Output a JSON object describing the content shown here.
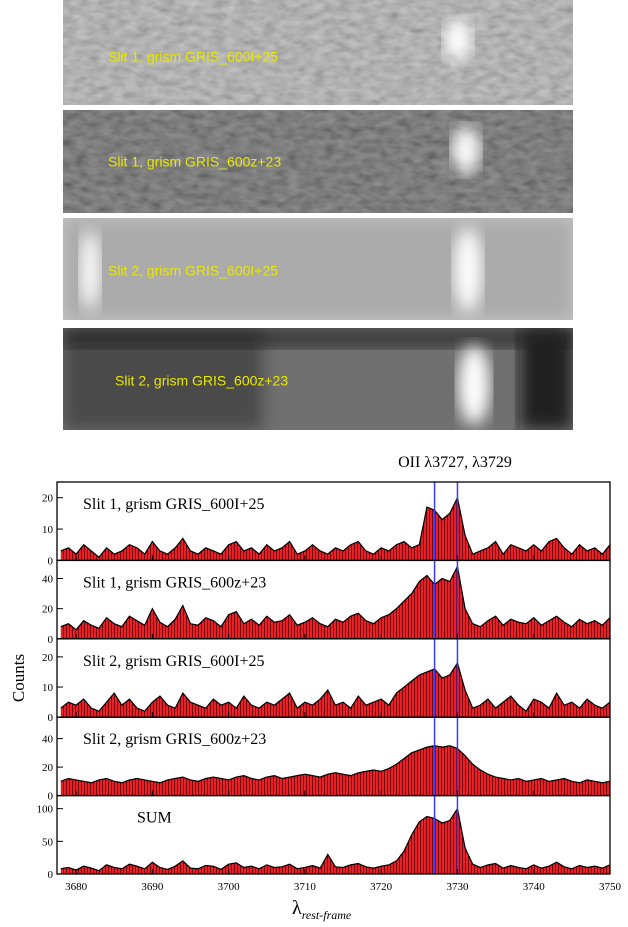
{
  "images": [
    {
      "label": "Slit 1, grism GRIS_600I+25"
    },
    {
      "label": "Slit 1, grism GRIS_600z+23"
    },
    {
      "label": "Slit 2, grism GRIS_600I+25"
    },
    {
      "label": "Slit 2, grism GRIS_600z+23"
    }
  ],
  "chart_data": {
    "type": "area",
    "title": "OII λ3727, λ3729",
    "y_label": "Counts",
    "x_label": "λ",
    "x_label_sub": "rest-frame",
    "color": "#e8202a",
    "line_color": "#000000",
    "reference_color": "#3a3aff",
    "reference_lines": [
      3727,
      3730
    ],
    "xlim": [
      3677.5,
      3750
    ],
    "xticks": [
      3680,
      3690,
      3700,
      3710,
      3720,
      3730,
      3740,
      3750
    ],
    "x": [
      3678,
      3679,
      3680,
      3681,
      3682,
      3683,
      3684,
      3685,
      3686,
      3687,
      3688,
      3689,
      3690,
      3691,
      3692,
      3693,
      3694,
      3695,
      3696,
      3697,
      3698,
      3699,
      3700,
      3701,
      3702,
      3703,
      3704,
      3705,
      3706,
      3707,
      3708,
      3709,
      3710,
      3711,
      3712,
      3713,
      3714,
      3715,
      3716,
      3717,
      3718,
      3719,
      3720,
      3721,
      3722,
      3723,
      3724,
      3725,
      3726,
      3727,
      3728,
      3729,
      3730,
      3731,
      3732,
      3733,
      3734,
      3735,
      3736,
      3737,
      3738,
      3739,
      3740,
      3741,
      3742,
      3743,
      3744,
      3745,
      3746,
      3747,
      3748,
      3749,
      3750
    ],
    "panels": [
      {
        "name": "Slit 1, grism GRIS_600I+25",
        "ylim": [
          0,
          25
        ],
        "yticks": [
          0,
          10,
          20
        ],
        "values": [
          3,
          4,
          2,
          5,
          3,
          1,
          4,
          2,
          3,
          5,
          4,
          2,
          6,
          3,
          2,
          4,
          7,
          3,
          2,
          4,
          3,
          2,
          5,
          6,
          3,
          4,
          2,
          5,
          3,
          4,
          6,
          2,
          3,
          5,
          3,
          2,
          4,
          3,
          5,
          6,
          3,
          2,
          4,
          3,
          5,
          6,
          4,
          5,
          17,
          16,
          13,
          15,
          20,
          8,
          2,
          3,
          4,
          6,
          2,
          5,
          4,
          3,
          5,
          3,
          6,
          7,
          4,
          2,
          5,
          3,
          4,
          2,
          5
        ]
      },
      {
        "name": "Slit 1, grism GRIS_600z+23",
        "ylim": [
          0,
          52
        ],
        "yticks": [
          0,
          20,
          40
        ],
        "values": [
          8,
          10,
          6,
          12,
          9,
          7,
          14,
          10,
          8,
          15,
          12,
          9,
          20,
          11,
          8,
          13,
          22,
          10,
          9,
          14,
          12,
          8,
          16,
          18,
          10,
          13,
          9,
          15,
          11,
          12,
          16,
          9,
          11,
          14,
          10,
          8,
          13,
          11,
          15,
          17,
          12,
          10,
          14,
          16,
          20,
          25,
          30,
          38,
          42,
          36,
          40,
          38,
          48,
          20,
          10,
          8,
          12,
          15,
          9,
          13,
          11,
          10,
          14,
          9,
          12,
          15,
          11,
          8,
          13,
          10,
          12,
          9,
          14
        ]
      },
      {
        "name": "Slit 2, grism GRIS_600I+25",
        "ylim": [
          0,
          26
        ],
        "yticks": [
          0,
          10,
          20
        ],
        "values": [
          3,
          5,
          4,
          6,
          3,
          2,
          5,
          8,
          4,
          6,
          3,
          2,
          5,
          7,
          4,
          3,
          8,
          5,
          4,
          3,
          6,
          4,
          5,
          3,
          7,
          4,
          3,
          5,
          4,
          6,
          8,
          3,
          5,
          4,
          6,
          9,
          4,
          5,
          3,
          7,
          4,
          5,
          6,
          4,
          8,
          10,
          12,
          14,
          15,
          16,
          13,
          14,
          18,
          9,
          3,
          4,
          6,
          3,
          5,
          7,
          4,
          2,
          6,
          5,
          3,
          8,
          4,
          5,
          3,
          6,
          4,
          3,
          5
        ]
      },
      {
        "name": "Slit 2, grism GRIS_600z+23",
        "ylim": [
          0,
          55
        ],
        "yticks": [
          0,
          20,
          40
        ],
        "values": [
          10,
          12,
          11,
          10,
          9,
          11,
          12,
          10,
          9,
          11,
          12,
          11,
          10,
          9,
          11,
          12,
          13,
          11,
          10,
          12,
          13,
          12,
          11,
          13,
          14,
          12,
          11,
          13,
          14,
          12,
          13,
          14,
          15,
          14,
          13,
          15,
          16,
          15,
          14,
          16,
          17,
          18,
          17,
          19,
          22,
          26,
          30,
          32,
          34,
          35,
          34,
          35,
          33,
          28,
          22,
          18,
          15,
          13,
          12,
          11,
          12,
          10,
          11,
          12,
          10,
          11,
          12,
          10,
          9,
          11,
          10,
          9,
          10
        ]
      },
      {
        "name": "SUM",
        "ylim": [
          0,
          120
        ],
        "yticks": [
          0,
          50,
          100
        ],
        "values": [
          8,
          10,
          6,
          12,
          9,
          5,
          14,
          10,
          8,
          15,
          12,
          8,
          18,
          10,
          7,
          12,
          20,
          9,
          8,
          13,
          12,
          7,
          15,
          17,
          10,
          12,
          8,
          14,
          10,
          11,
          15,
          8,
          10,
          13,
          9,
          30,
          11,
          10,
          14,
          16,
          11,
          9,
          12,
          14,
          20,
          35,
          60,
          80,
          88,
          85,
          78,
          82,
          100,
          40,
          15,
          10,
          14,
          16,
          9,
          13,
          10,
          8,
          14,
          9,
          12,
          18,
          11,
          8,
          13,
          10,
          12,
          9,
          14
        ]
      }
    ]
  }
}
